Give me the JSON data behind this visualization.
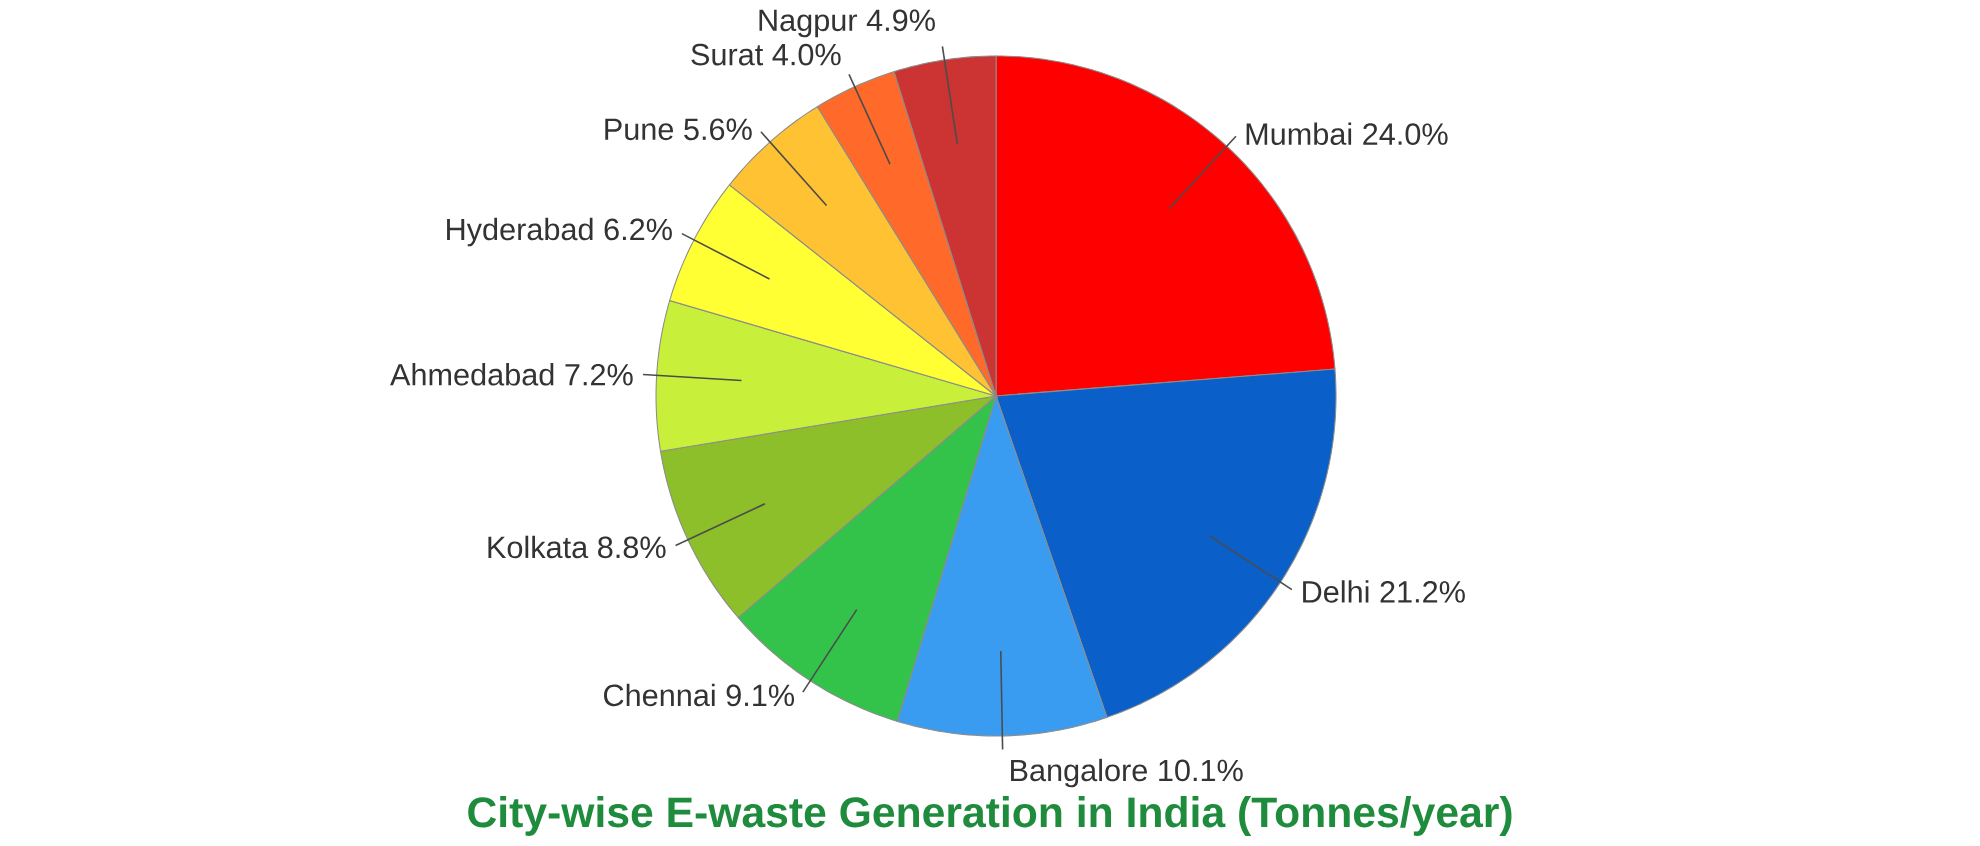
{
  "chart_data": {
    "type": "pie",
    "title": "City-wise E-waste Generation in India (Tonnes/year)",
    "categories": [
      "Mumbai",
      "Delhi",
      "Bangalore",
      "Chennai",
      "Kolkata",
      "Ahmedabad",
      "Hyderabad",
      "Pune",
      "Surat",
      "Nagpur"
    ],
    "values": [
      24.0,
      21.2,
      10.1,
      9.1,
      8.8,
      7.2,
      6.2,
      5.6,
      4.0,
      4.9
    ],
    "value_labels": [
      "24.0%",
      "21.2%",
      "10.1%",
      "9.1%",
      "8.8%",
      "7.2%",
      "6.2%",
      "5.6%",
      "4.0%",
      "4.9%"
    ],
    "colors": [
      "#ff0000",
      "#0a5fc8",
      "#3a9cf0",
      "#33c24a",
      "#8cbf2a",
      "#c8f03a",
      "#ffff33",
      "#ffc233",
      "#ff6a2a",
      "#cc3333"
    ]
  }
}
